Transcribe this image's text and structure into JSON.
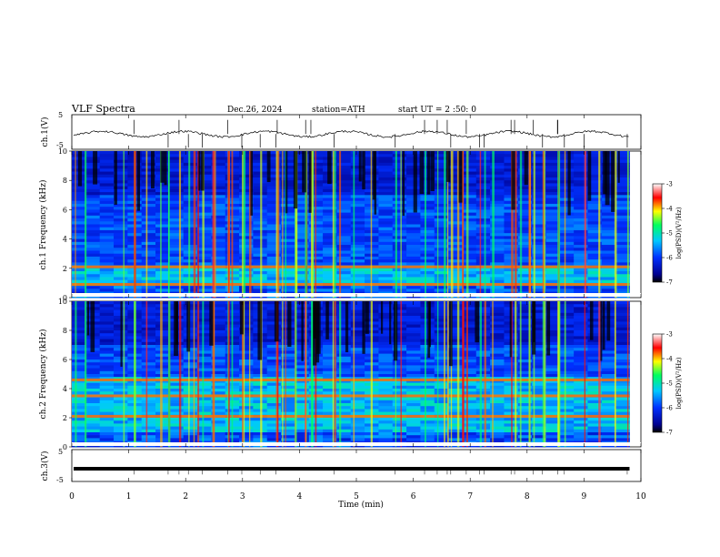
{
  "header": {
    "title": "VLF Spectra",
    "date": "Dec.26, 2024",
    "station": "station=ATH",
    "start": "start UT = 2 :50: 0"
  },
  "chart_data": [
    {
      "type": "line",
      "panel": "ch1-waveform",
      "ylabel": "ch.1(V)",
      "ylim": [
        -5,
        5
      ],
      "yticks": [
        "5",
        "-5"
      ],
      "xlim": [
        0,
        10
      ],
      "trace_color": "#000000"
    },
    {
      "type": "heatmap",
      "panel": "ch1-spectrogram",
      "ylabel": "ch.1 Frequency (kHz)",
      "ylim": [
        0,
        10
      ],
      "yticks": [
        "0",
        "2",
        "4",
        "6",
        "8",
        "10"
      ],
      "xlim": [
        0,
        10
      ],
      "colorbar": {
        "label": "log(PSD)(V²/Hz)",
        "range": [
          -7,
          -3
        ],
        "ticks": [
          "-3",
          "-4",
          "-5",
          "-6",
          "-7"
        ]
      },
      "features": {
        "band_kHz": [
          0.7,
          2.1
        ],
        "lines_kHz": [
          0.9,
          2.1
        ]
      }
    },
    {
      "type": "heatmap",
      "panel": "ch2-spectrogram",
      "ylabel": "ch.2 Frequency (kHz)",
      "ylim": [
        0,
        10
      ],
      "yticks": [
        "0",
        "2",
        "4",
        "6",
        "8",
        "10"
      ],
      "xlim": [
        0,
        10
      ],
      "colorbar": {
        "label": "log(PSD)(V²/Hz)",
        "range": [
          -7,
          -3
        ],
        "ticks": [
          "-3",
          "-4",
          "-5",
          "-6",
          "-7"
        ]
      },
      "features": {
        "band_kHz": [
          1.0,
          4.8
        ],
        "lines_kHz": [
          2.1,
          3.5,
          4.6
        ]
      }
    },
    {
      "type": "line",
      "panel": "ch3-waveform",
      "ylabel": "ch.3(V)",
      "ylim": [
        -5,
        5
      ],
      "yticks": [
        "5",
        "-5"
      ],
      "xlim": [
        0,
        10
      ],
      "constant_value": -1,
      "trace_color": "#000000"
    }
  ],
  "xaxis": {
    "label": "Time (min)",
    "ticks": [
      "0",
      "1",
      "2",
      "3",
      "4",
      "5",
      "6",
      "7",
      "8",
      "9",
      "10"
    ],
    "data_end_min": 9.8
  },
  "colors": {
    "spectro_low": "#000000",
    "spectro_mid": "#00a0ff",
    "spectro_high": "#ff0000"
  }
}
